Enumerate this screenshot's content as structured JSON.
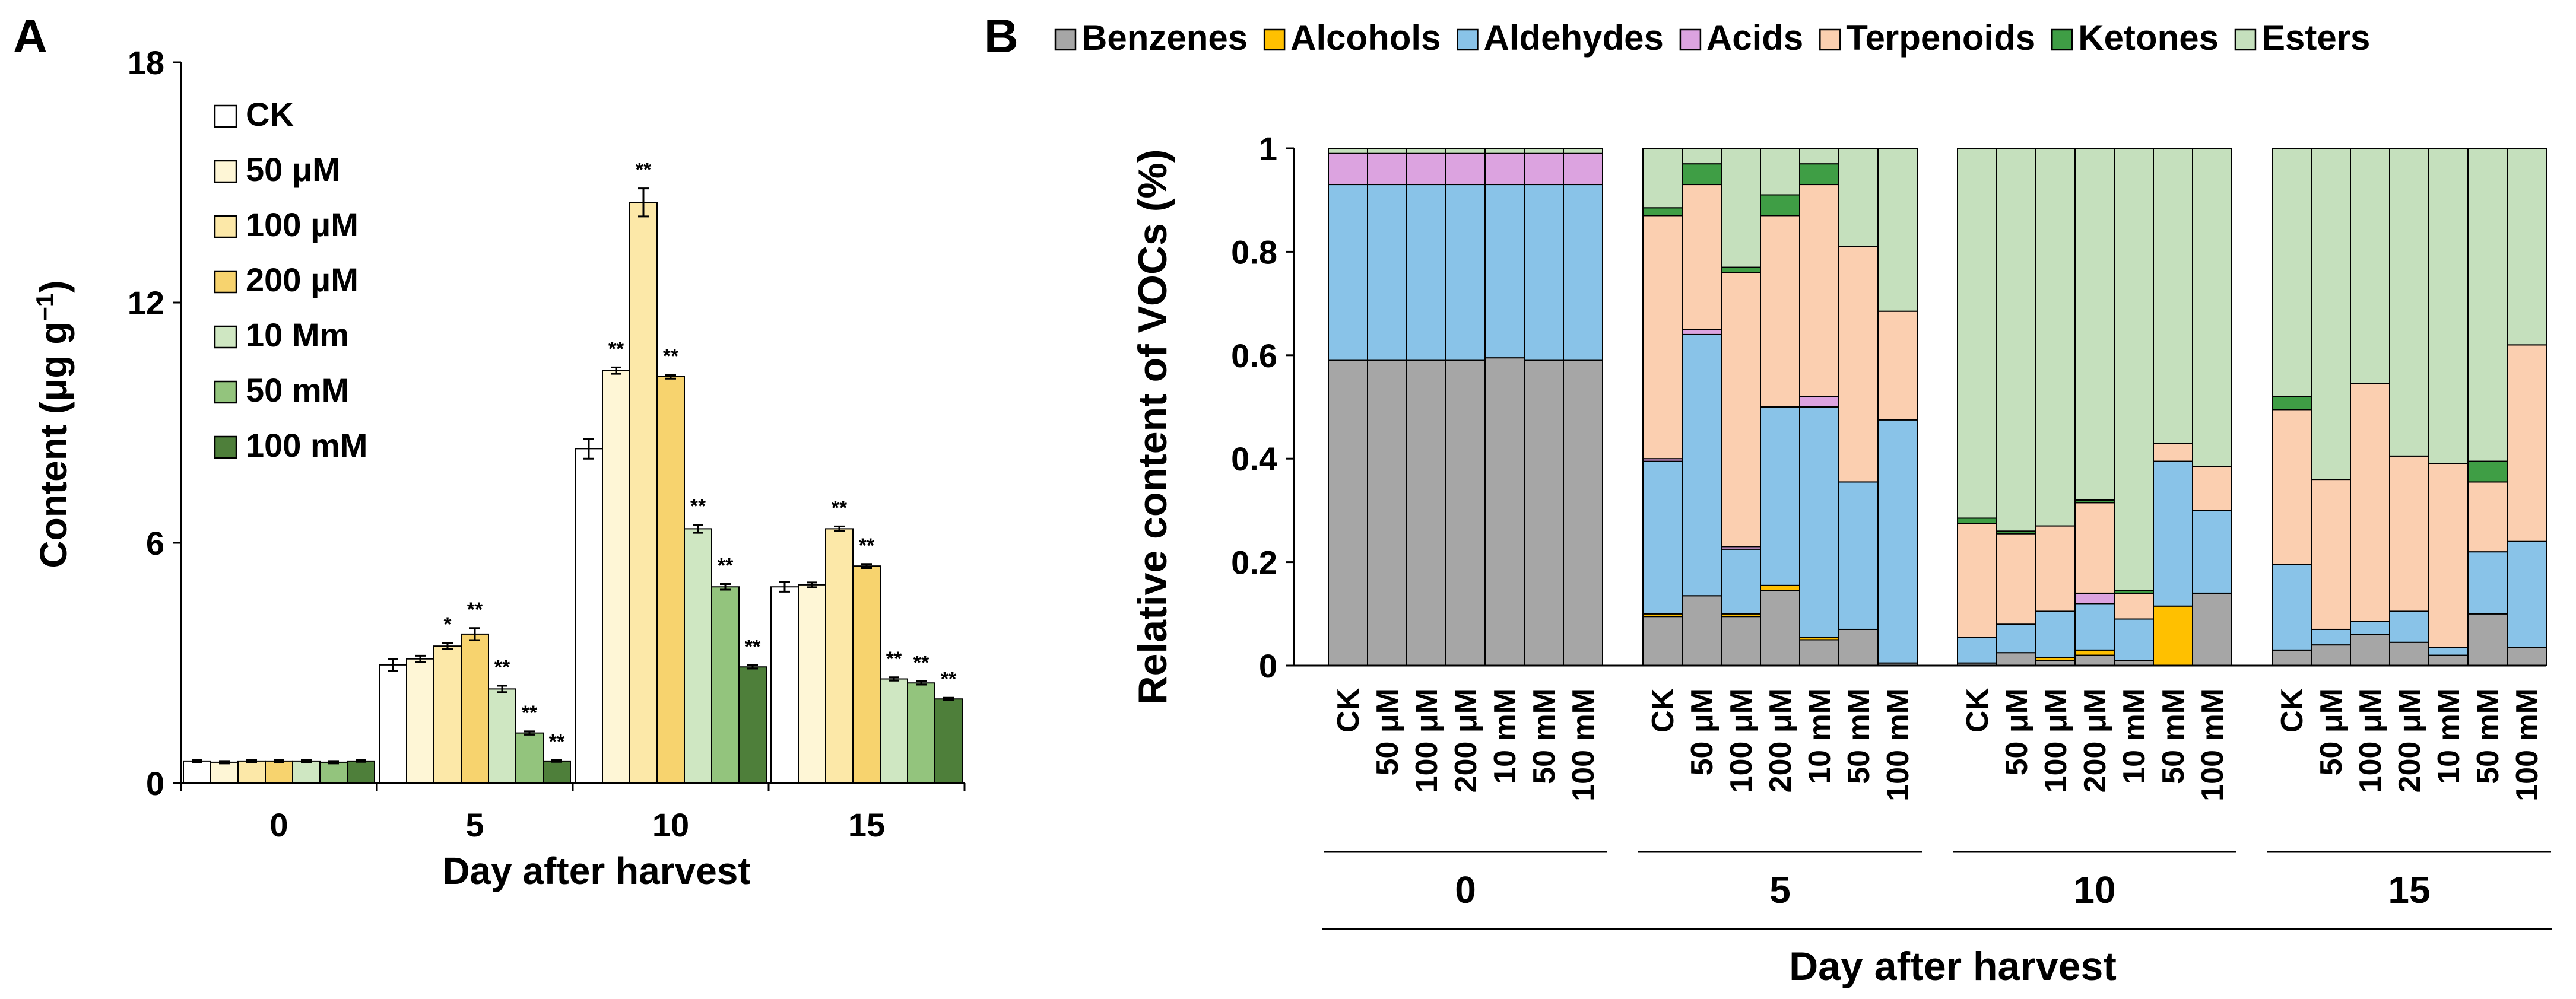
{
  "panel_a": {
    "label": "A",
    "chart_data": {
      "type": "bar",
      "title": "",
      "xlabel": "Day after harvest",
      "ylabel": "Content (μg g",
      "ylabel_sup": "−1",
      "ylabel_close": ")",
      "categories": [
        "0",
        "5",
        "10",
        "15"
      ],
      "yticks": [
        "0",
        "6",
        "12",
        "18"
      ],
      "ylim": [
        0,
        18
      ],
      "grid": false,
      "legend_position": "top-left",
      "series": [
        {
          "name": "CK",
          "color": "#ffffff",
          "values": [
            0.55,
            2.95,
            8.35,
            4.9
          ],
          "errors": [
            0.03,
            0.15,
            0.25,
            0.12
          ],
          "sig": [
            "",
            "",
            "",
            ""
          ]
        },
        {
          "name": "50 μM",
          "color": "#fef6d6",
          "values": [
            0.52,
            3.1,
            10.3,
            4.95
          ],
          "errors": [
            0.03,
            0.08,
            0.08,
            0.06
          ],
          "sig": [
            "",
            "",
            "**",
            ""
          ]
        },
        {
          "name": "100 μM",
          "color": "#fce8a8",
          "values": [
            0.55,
            3.42,
            14.5,
            6.35
          ],
          "errors": [
            0.03,
            0.08,
            0.35,
            0.06
          ],
          "sig": [
            "",
            "*",
            "**",
            "**"
          ]
        },
        {
          "name": "200 μM",
          "color": "#f7d36e",
          "values": [
            0.55,
            3.72,
            10.15,
            5.42
          ],
          "errors": [
            0.03,
            0.15,
            0.05,
            0.05
          ],
          "sig": [
            "",
            "**",
            "**",
            "**"
          ]
        },
        {
          "name": "10 Mm",
          "color": "#cfe7c2",
          "values": [
            0.55,
            2.35,
            6.35,
            2.6
          ],
          "errors": [
            0.03,
            0.08,
            0.1,
            0.04
          ],
          "sig": [
            "",
            "**",
            "**",
            "**"
          ]
        },
        {
          "name": "50 mM",
          "color": "#93c47d",
          "values": [
            0.52,
            1.25,
            4.9,
            2.5
          ],
          "errors": [
            0.03,
            0.04,
            0.07,
            0.04
          ],
          "sig": [
            "",
            "**",
            "**",
            "**"
          ]
        },
        {
          "name": "100 mM",
          "color": "#4e7f3a",
          "values": [
            0.55,
            0.55,
            2.9,
            2.1
          ],
          "errors": [
            0.02,
            0.02,
            0.04,
            0.03
          ],
          "sig": [
            "",
            "**",
            "**",
            "**"
          ]
        }
      ]
    }
  },
  "panel_b": {
    "label": "B",
    "chart_data": {
      "type": "bar",
      "stacked": true,
      "title": "",
      "xlabel": "Day after harvest",
      "ylabel": "Relative content of VOCs (%)",
      "yticks": [
        "0",
        "0.2",
        "0.4",
        "0.6",
        "0.8",
        "1"
      ],
      "ylim": [
        0,
        1
      ],
      "legend_position": "top",
      "groups": [
        "0",
        "5",
        "10",
        "15"
      ],
      "treatments": [
        "CK",
        "50 μM",
        "100 μM",
        "200 μM",
        "10 mM",
        "50 mM",
        "100 mM"
      ],
      "series": [
        {
          "name": "Benzenes",
          "color": "#a6a6a6"
        },
        {
          "name": "Alcohols",
          "color": "#ffc000"
        },
        {
          "name": "Aldehydes",
          "color": "#89c3e8"
        },
        {
          "name": "Acids",
          "color": "#dca3e0"
        },
        {
          "name": "Terpenoids",
          "color": "#fbcfb0"
        },
        {
          "name": "Ketones",
          "color": "#3f9e45"
        },
        {
          "name": "Esters",
          "color": "#c5e0bd"
        }
      ],
      "stacks": [
        [
          [
            0.59,
            0,
            0.34,
            0.06,
            0,
            0,
            0.01
          ],
          [
            0.59,
            0,
            0.34,
            0.06,
            0,
            0,
            0.01
          ],
          [
            0.59,
            0,
            0.34,
            0.06,
            0,
            0,
            0.01
          ],
          [
            0.59,
            0,
            0.34,
            0.06,
            0,
            0,
            0.01
          ],
          [
            0.595,
            0,
            0.335,
            0.06,
            0,
            0,
            0.01
          ],
          [
            0.59,
            0,
            0.34,
            0.06,
            0,
            0,
            0.01
          ],
          [
            0.59,
            0,
            0.34,
            0.06,
            0,
            0,
            0.01
          ]
        ],
        [
          [
            0.095,
            0.005,
            0.295,
            0.005,
            0.47,
            0.015,
            0.115
          ],
          [
            0.135,
            0,
            0.505,
            0.01,
            0.28,
            0.04,
            0.03
          ],
          [
            0.095,
            0.005,
            0.125,
            0.005,
            0.53,
            0.01,
            0.23
          ],
          [
            0.145,
            0.01,
            0.345,
            0,
            0.37,
            0.04,
            0.09
          ],
          [
            0.05,
            0.005,
            0.445,
            0.02,
            0.41,
            0.04,
            0.03
          ],
          [
            0.07,
            0,
            0.285,
            0,
            0.455,
            0,
            0.19
          ],
          [
            0.005,
            0,
            0.47,
            0,
            0.21,
            0,
            0.315
          ]
        ],
        [
          [
            0.005,
            0,
            0.05,
            0,
            0.22,
            0.01,
            0.715
          ],
          [
            0.025,
            0,
            0.055,
            0,
            0.175,
            0.005,
            0.74
          ],
          [
            0.01,
            0.005,
            0.09,
            0,
            0.165,
            0,
            0.73
          ],
          [
            0.02,
            0.01,
            0.09,
            0.02,
            0.175,
            0.005,
            0.68
          ],
          [
            0.01,
            0,
            0.08,
            0,
            0.05,
            0.005,
            0.855
          ],
          [
            0,
            0.115,
            0.28,
            0,
            0.035,
            0,
            0.57
          ],
          [
            0.14,
            0,
            0.16,
            0,
            0.085,
            0,
            0.615
          ]
        ],
        [
          [
            0.03,
            0,
            0.165,
            0,
            0.3,
            0.025,
            0.48
          ],
          [
            0.04,
            0,
            0.03,
            0,
            0.29,
            0,
            0.64
          ],
          [
            0.06,
            0,
            0.025,
            0,
            0.46,
            0,
            0.455
          ],
          [
            0.045,
            0,
            0.06,
            0,
            0.3,
            0,
            0.595
          ],
          [
            0.02,
            0,
            0.015,
            0,
            0.355,
            0,
            0.61
          ],
          [
            0.1,
            0,
            0.12,
            0,
            0.135,
            0.04,
            0.605
          ],
          [
            0.035,
            0,
            0.205,
            0,
            0.38,
            0,
            0.38
          ]
        ]
      ]
    }
  }
}
